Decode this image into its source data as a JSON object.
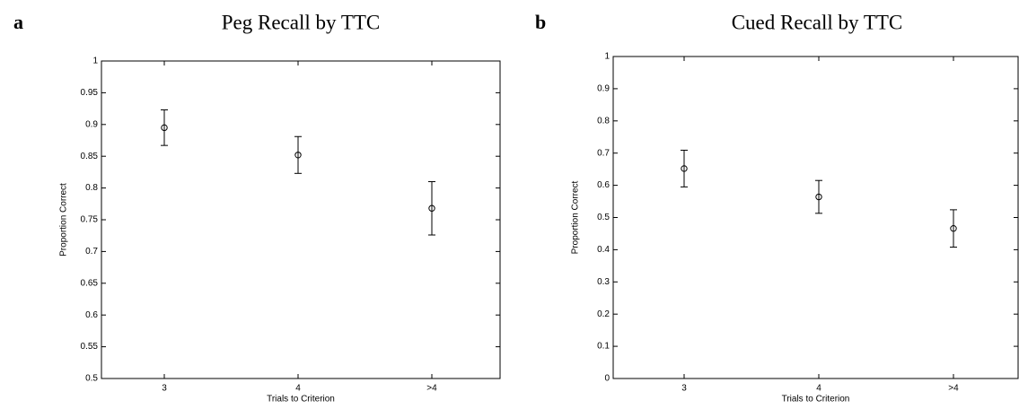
{
  "chart_data": [
    {
      "type": "errorbar",
      "label": "a",
      "title": "Peg Recall by TTC",
      "x_label": "Trials to Criterion",
      "y_label": "Proportion Correct",
      "categories": [
        "3",
        "4",
        ">4"
      ],
      "values": [
        0.895,
        0.852,
        0.768
      ],
      "errors": [
        0.028,
        0.029,
        0.042
      ],
      "ylim": [
        0.5,
        1
      ],
      "yticks": [
        0.5,
        0.55,
        0.6,
        0.65,
        0.7,
        0.75,
        0.8,
        0.85,
        0.9,
        0.95,
        1
      ],
      "color": "#000000"
    },
    {
      "type": "errorbar",
      "label": "b",
      "title": "Cued Recall by TTC",
      "x_label": "Trials to Criterion",
      "y_label": "Proportion Correct",
      "categories": [
        "3",
        "4",
        ">4"
      ],
      "values": [
        0.652,
        0.564,
        0.466
      ],
      "errors": [
        0.057,
        0.051,
        0.058
      ],
      "ylim": [
        0,
        1
      ],
      "yticks": [
        0,
        0.1,
        0.2,
        0.3,
        0.4,
        0.5,
        0.6,
        0.7,
        0.8,
        0.9,
        1
      ],
      "color": "#000000"
    }
  ]
}
